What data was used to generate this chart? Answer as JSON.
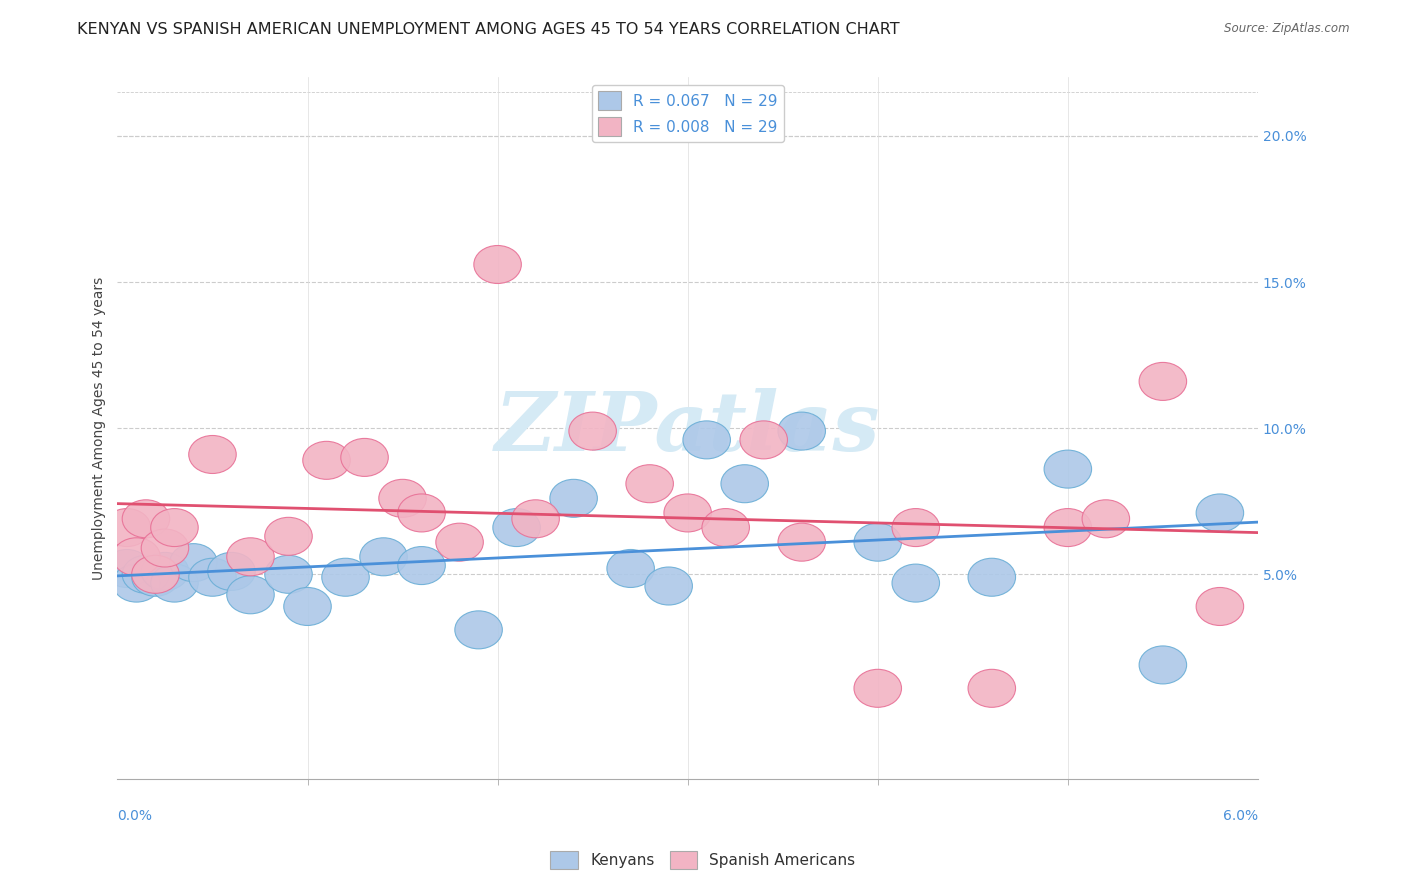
{
  "title": "KENYAN VS SPANISH AMERICAN UNEMPLOYMENT AMONG AGES 45 TO 54 YEARS CORRELATION CHART",
  "source": "Source: ZipAtlas.com",
  "ylabel": "Unemployment Among Ages 45 to 54 years",
  "legend_label1": "Kenyans",
  "legend_label2": "Spanish Americans",
  "legend_R1": "R = 0.067",
  "legend_N1": "N = 29",
  "legend_R2": "R = 0.008",
  "legend_N2": "N = 29",
  "xlim": [
    0.0,
    0.06
  ],
  "ylim": [
    -0.02,
    0.22
  ],
  "yticks_right": [
    0.05,
    0.1,
    0.15,
    0.2
  ],
  "ytick_labels_right": [
    "5.0%",
    "10.0%",
    "15.0%",
    "20.0%"
  ],
  "background_color": "#ffffff",
  "grid_color": "#cccccc",
  "kenyan_color": "#adc8e8",
  "spanish_color": "#f2b4c4",
  "kenyan_edge_color": "#6aaed6",
  "spanish_edge_color": "#e87096",
  "kenyan_line_color": "#4a90d9",
  "spanish_line_color": "#e05070",
  "kenyan_x": [
    0.0005,
    0.001,
    0.0015,
    0.002,
    0.0025,
    0.003,
    0.004,
    0.005,
    0.006,
    0.007,
    0.009,
    0.01,
    0.012,
    0.014,
    0.016,
    0.019,
    0.021,
    0.024,
    0.027,
    0.029,
    0.031,
    0.033,
    0.036,
    0.04,
    0.042,
    0.046,
    0.05,
    0.055,
    0.058
  ],
  "kenyan_y": [
    0.052,
    0.047,
    0.05,
    0.049,
    0.051,
    0.047,
    0.054,
    0.049,
    0.051,
    0.043,
    0.05,
    0.039,
    0.049,
    0.056,
    0.053,
    0.031,
    0.066,
    0.076,
    0.052,
    0.046,
    0.096,
    0.081,
    0.099,
    0.061,
    0.047,
    0.049,
    0.086,
    0.019,
    0.071
  ],
  "spanish_x": [
    0.0005,
    0.001,
    0.0015,
    0.002,
    0.0025,
    0.003,
    0.005,
    0.007,
    0.009,
    0.011,
    0.013,
    0.015,
    0.016,
    0.018,
    0.02,
    0.022,
    0.025,
    0.028,
    0.03,
    0.032,
    0.034,
    0.036,
    0.04,
    0.042,
    0.046,
    0.05,
    0.052,
    0.055,
    0.058
  ],
  "spanish_y": [
    0.066,
    0.056,
    0.069,
    0.05,
    0.059,
    0.066,
    0.091,
    0.056,
    0.063,
    0.089,
    0.09,
    0.076,
    0.071,
    0.061,
    0.156,
    0.069,
    0.099,
    0.081,
    0.071,
    0.066,
    0.096,
    0.061,
    0.011,
    0.066,
    0.011,
    0.066,
    0.069,
    0.116,
    0.039
  ],
  "watermark_color": "#d5eaf5",
  "title_fontsize": 11.5,
  "axis_label_fontsize": 10,
  "tick_fontsize": 10
}
